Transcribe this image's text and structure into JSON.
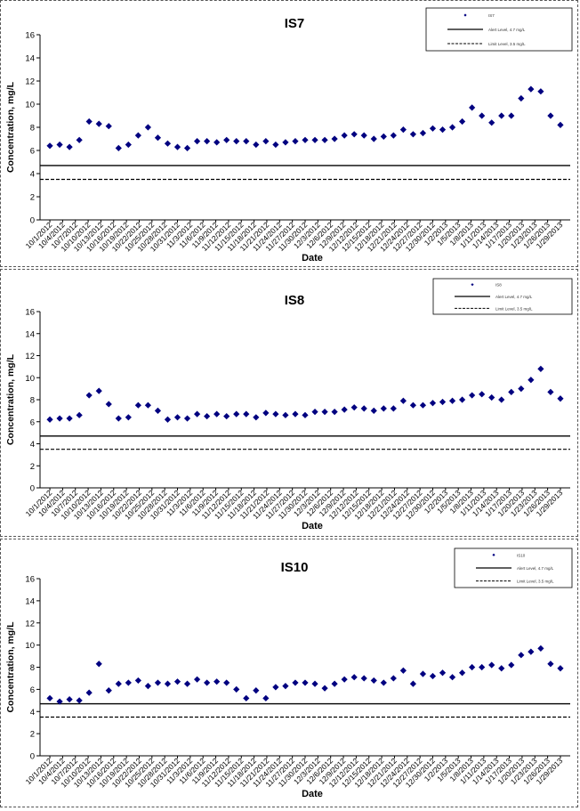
{
  "chart_data": [
    {
      "type": "scatter",
      "title": "IS7",
      "xlabel": "Date",
      "ylabel": "Concentration, mg/L",
      "ylim": [
        0,
        16
      ],
      "yticks": [
        "0",
        "2",
        "4",
        "6",
        "8",
        "10",
        "12",
        "14",
        "16"
      ],
      "grid": false,
      "legend_position": "top-right",
      "legend": {
        "series": "IS7",
        "line1": "Alert Level, 4.7 mg/L",
        "line2": "Limit Level, 3.5 mg/L"
      },
      "x_tick_labels": [
        "10/1/2012",
        "10/4/2012",
        "10/7/2012",
        "10/10/2012",
        "10/13/2012",
        "10/16/2012",
        "10/19/2012",
        "10/22/2012",
        "10/25/2012",
        "10/28/2012",
        "10/31/2012",
        "11/3/2012",
        "11/6/2012",
        "11/9/2012",
        "11/12/2012",
        "11/15/2012",
        "11/18/2012",
        "11/21/2012",
        "11/24/2012",
        "11/27/2012",
        "11/30/2012",
        "12/3/2012",
        "12/6/2012",
        "12/9/2012",
        "12/12/2012",
        "12/15/2012",
        "12/18/2012",
        "12/21/2012",
        "12/24/2012",
        "12/27/2012",
        "12/30/2012",
        "1/2/2013",
        "1/5/2013",
        "1/8/2013",
        "1/11/2013",
        "1/14/2013",
        "1/17/2013",
        "1/20/2013",
        "1/23/2013",
        "1/26/2013",
        "1/29/2013"
      ],
      "hlines": [
        4.7,
        3.5
      ],
      "values": [
        6.4,
        6.5,
        6.3,
        6.9,
        8.5,
        8.3,
        8.1,
        6.2,
        6.5,
        7.3,
        8.0,
        7.1,
        6.6,
        6.3,
        6.2,
        6.8,
        6.8,
        6.7,
        6.9,
        6.8,
        6.8,
        6.5,
        6.8,
        6.5,
        6.7,
        6.8,
        6.9,
        6.9,
        6.9,
        7.0,
        7.3,
        7.4,
        7.3,
        7.0,
        7.2,
        7.3,
        7.8,
        7.4,
        7.5,
        7.9,
        7.8,
        8.0,
        8.5,
        9.7,
        9.0,
        8.4,
        9.0,
        9.0,
        10.5,
        11.3,
        11.1,
        9.0,
        8.2
      ]
    },
    {
      "type": "scatter",
      "title": "IS8",
      "xlabel": "Date",
      "ylabel": "Concentration, mg/L",
      "ylim": [
        0,
        16
      ],
      "yticks": [
        "0",
        "2",
        "4",
        "6",
        "8",
        "10",
        "12",
        "14",
        "16"
      ],
      "grid": false,
      "legend_position": "top-right",
      "legend": {
        "series": "IS8",
        "line1": "Alert Level, 4.7 mg/L",
        "line2": "Limit Level, 3.5 mg/L"
      },
      "x_tick_labels": [
        "10/1/2012",
        "10/4/2012",
        "10/7/2012",
        "10/10/2012",
        "10/13/2012",
        "10/16/2012",
        "10/19/2012",
        "10/22/2012",
        "10/25/2012",
        "10/28/2012",
        "10/31/2012",
        "11/3/2012",
        "11/6/2012",
        "11/9/2012",
        "11/12/2012",
        "11/15/2012",
        "11/18/2012",
        "11/21/2012",
        "11/24/2012",
        "11/27/2012",
        "11/30/2012",
        "12/3/2012",
        "12/6/2012",
        "12/9/2012",
        "12/12/2012",
        "12/15/2012",
        "12/18/2012",
        "12/21/2012",
        "12/24/2012",
        "12/27/2012",
        "12/30/2012",
        "1/2/2013",
        "1/5/2013",
        "1/8/2013",
        "1/11/2013",
        "1/14/2013",
        "1/17/2013",
        "1/20/2013",
        "1/23/2013",
        "1/26/2013",
        "1/29/2013"
      ],
      "hlines": [
        4.7,
        3.5
      ],
      "values": [
        6.2,
        6.3,
        6.3,
        6.6,
        8.4,
        8.8,
        7.6,
        6.3,
        6.4,
        7.5,
        7.5,
        7.0,
        6.2,
        6.4,
        6.3,
        6.7,
        6.5,
        6.7,
        6.5,
        6.7,
        6.7,
        6.4,
        6.8,
        6.7,
        6.6,
        6.7,
        6.6,
        6.9,
        6.9,
        6.9,
        7.1,
        7.3,
        7.2,
        7.0,
        7.2,
        7.2,
        7.9,
        7.5,
        7.5,
        7.7,
        7.8,
        7.9,
        8.0,
        8.4,
        8.5,
        8.2,
        8.0,
        8.7,
        9.0,
        9.8,
        10.8,
        8.7,
        8.1
      ]
    },
    {
      "type": "scatter",
      "title": "IS10",
      "xlabel": "Date",
      "ylabel": "Concentration, mg/L",
      "ylim": [
        0,
        16
      ],
      "yticks": [
        "0",
        "2",
        "4",
        "6",
        "8",
        "10",
        "12",
        "14",
        "16"
      ],
      "grid": false,
      "legend_position": "top-right",
      "legend": {
        "series": "IS10",
        "line1": "Alert Level, 4.7 mg/L",
        "line2": "Limit Level, 3.5 mg/L"
      },
      "x_tick_labels": [
        "10/1/2012",
        "10/4/2012",
        "10/7/2012",
        "10/10/2012",
        "10/13/2012",
        "10/16/2012",
        "10/19/2012",
        "10/22/2012",
        "10/25/2012",
        "10/28/2012",
        "10/31/2012",
        "11/3/2012",
        "11/6/2012",
        "11/9/2012",
        "11/12/2012",
        "11/15/2012",
        "11/18/2012",
        "11/21/2012",
        "11/24/2012",
        "11/27/2012",
        "11/30/2012",
        "12/3/2012",
        "12/6/2012",
        "12/9/2012",
        "12/12/2012",
        "12/15/2012",
        "12/18/2012",
        "12/21/2012",
        "12/24/2012",
        "12/27/2012",
        "12/30/2012",
        "1/2/2013",
        "1/5/2013",
        "1/8/2013",
        "1/11/2013",
        "1/14/2013",
        "1/17/2013",
        "1/20/2013",
        "1/23/2013",
        "1/26/2013",
        "1/29/2013"
      ],
      "hlines": [
        4.7,
        3.5
      ],
      "values": [
        5.2,
        4.9,
        5.1,
        5.0,
        5.7,
        8.3,
        5.9,
        6.5,
        6.6,
        6.8,
        6.3,
        6.6,
        6.5,
        6.7,
        6.5,
        6.9,
        6.6,
        6.7,
        6.6,
        6.0,
        5.2,
        5.9,
        5.2,
        6.2,
        6.3,
        6.6,
        6.6,
        6.5,
        6.1,
        6.5,
        6.9,
        7.1,
        7.0,
        6.8,
        6.6,
        7.0,
        7.7,
        6.5,
        7.4,
        7.2,
        7.5,
        7.1,
        7.5,
        8.0,
        8.0,
        8.2,
        7.9,
        8.2,
        9.1,
        9.4,
        9.7,
        8.3,
        7.9
      ]
    }
  ]
}
